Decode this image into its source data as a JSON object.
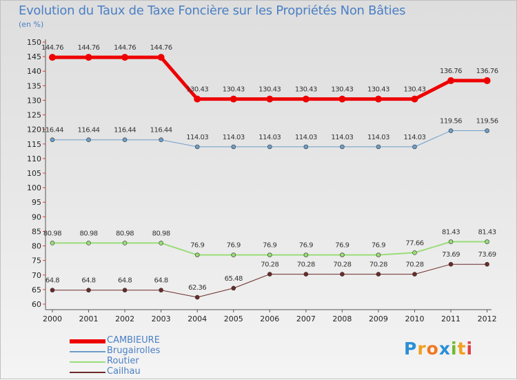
{
  "header": {
    "title": "Evolution du Taux de Taxe Foncière sur les Propriétés Non Bâties",
    "unit": "(en %)"
  },
  "logo": {
    "letters": [
      "P",
      "r",
      "o",
      "x",
      "i",
      "t",
      "i"
    ],
    "colors": [
      "#2a8fd6",
      "#f0a020",
      "#f07820",
      "#2a8fd6",
      "#70b830",
      "#f0a020",
      "#e04040"
    ]
  },
  "chart_data": {
    "type": "line",
    "title": "Evolution du Taux de Taxe Foncière sur les Propriétés Non Bâties",
    "ylabel": "(en %)",
    "xlabel": "",
    "categories": [
      "2000",
      "2001",
      "2002",
      "2003",
      "2004",
      "2005",
      "2006",
      "2007",
      "2008",
      "2009",
      "2010",
      "2011",
      "2012"
    ],
    "ylim": [
      60,
      150
    ],
    "yticks": [
      60,
      65,
      70,
      75,
      80,
      85,
      90,
      95,
      100,
      105,
      110,
      115,
      120,
      125,
      130,
      135,
      140,
      145,
      150
    ],
    "grid": false,
    "series": [
      {
        "name": "CAMBIEURE",
        "color": "#ee0000",
        "width": 5,
        "values": [
          144.76,
          144.76,
          144.76,
          144.76,
          130.43,
          130.43,
          130.43,
          130.43,
          130.43,
          130.43,
          130.43,
          136.76,
          136.76
        ],
        "labels": [
          "144.76",
          "144.76",
          "144.76",
          "144.76",
          "130.43",
          "130.43",
          "130.43",
          "130.43",
          "130.43",
          "130.43",
          "130.43",
          "136.76",
          "136.76"
        ]
      },
      {
        "name": "Brugairolles",
        "color": "#6c9dc8",
        "width": 1,
        "values": [
          116.44,
          116.44,
          116.44,
          116.44,
          114.03,
          114.03,
          114.03,
          114.03,
          114.03,
          114.03,
          114.03,
          119.56,
          119.56
        ],
        "labels": [
          "116.44",
          "116.44",
          "116.44",
          "116.44",
          "114.03",
          "114.03",
          "114.03",
          "114.03",
          "114.03",
          "114.03",
          "114.03",
          "119.56",
          "119.56"
        ]
      },
      {
        "name": "Routier",
        "color": "#99dd77",
        "width": 2,
        "values": [
          80.98,
          80.98,
          80.98,
          80.98,
          76.9,
          76.9,
          76.9,
          76.9,
          76.9,
          76.9,
          77.66,
          81.43,
          81.43
        ],
        "labels": [
          "80.98",
          "80.98",
          "80.98",
          "80.98",
          "76.9",
          "76.9",
          "76.9",
          "76.9",
          "76.9",
          "76.9",
          "77.66",
          "81.43",
          "81.43"
        ]
      },
      {
        "name": "Cailhau",
        "color": "#6b2a2a",
        "width": 1,
        "values": [
          64.8,
          64.8,
          64.8,
          64.8,
          62.36,
          65.48,
          70.28,
          70.28,
          70.28,
          70.28,
          70.28,
          73.69,
          73.69
        ],
        "labels": [
          "64.8",
          "64.8",
          "64.8",
          "64.8",
          "62.36",
          "65.48",
          "70.28",
          "70.28",
          "70.28",
          "70.28",
          "70.28",
          "73.69",
          "73.69"
        ]
      }
    ]
  }
}
